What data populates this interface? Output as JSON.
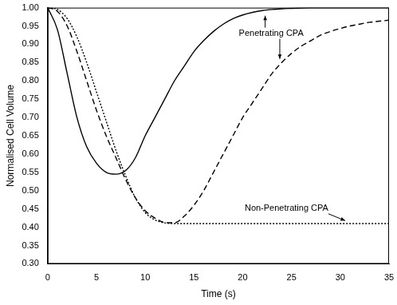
{
  "chart_data": {
    "type": "line",
    "x_label": "Time (s)",
    "y_label": "Normalised Cell Volume",
    "annotations": [
      "Penetrating CPA",
      "Non-Penetrating CPA"
    ],
    "xlim": [
      0,
      35
    ],
    "xticks": [
      0,
      5,
      10,
      15,
      20,
      25,
      30,
      35
    ],
    "ylim": [
      0.3,
      1.0
    ],
    "yticks": [
      {
        "value": 0.3,
        "label": "0.30"
      },
      0.35,
      {
        "value": 0.4,
        "label": "0.40"
      },
      0.45,
      {
        "value": 0.5,
        "label": "0.50"
      },
      0.55,
      {
        "value": 0.6,
        "label": "0.60"
      },
      0.65,
      {
        "value": 0.7,
        "label": "0.70"
      },
      0.75,
      {
        "value": 0.8,
        "label": "0.80"
      },
      0.85,
      {
        "value": 0.9,
        "label": "0.90"
      },
      0.95,
      {
        "value": 1.0,
        "label": "1.00"
      }
    ],
    "grid": false,
    "legend": false,
    "x": [
      0,
      1,
      2,
      3,
      4,
      5,
      6,
      7,
      8,
      9,
      10,
      11,
      12,
      13,
      14,
      15,
      16,
      17,
      18,
      19,
      20,
      21,
      22,
      23,
      24,
      25,
      26,
      27,
      28,
      29,
      30,
      31,
      32,
      33,
      34,
      35
    ],
    "series": [
      {
        "color": "#000000",
        "line_style": "solid",
        "values": [
          1,
          0.94,
          0.82,
          0.7,
          0.62,
          0.575,
          0.55,
          0.545,
          0.555,
          0.59,
          0.65,
          0.7,
          0.75,
          0.8,
          0.84,
          0.88,
          0.91,
          0.935,
          0.955,
          0.97,
          0.98,
          0.987,
          0.992,
          0.995,
          0.997,
          0.998,
          0.999,
          1,
          1,
          1,
          1,
          1,
          1,
          1,
          1,
          1
        ]
      },
      {
        "color": "#000000",
        "line_style": "dashed",
        "values": [
          1,
          0.99,
          0.95,
          0.88,
          0.8,
          0.72,
          0.65,
          0.59,
          0.53,
          0.48,
          0.445,
          0.425,
          0.413,
          0.412,
          0.43,
          0.46,
          0.5,
          0.55,
          0.6,
          0.65,
          0.7,
          0.74,
          0.78,
          0.82,
          0.85,
          0.875,
          0.895,
          0.91,
          0.925,
          0.935,
          0.943,
          0.95,
          0.955,
          0.96,
          0.963,
          0.966
        ]
      },
      {
        "color": "#000000",
        "line_style": "dotted",
        "values": [
          1,
          0.995,
          0.97,
          0.92,
          0.85,
          0.77,
          0.69,
          0.61,
          0.54,
          0.48,
          0.44,
          0.42,
          0.412,
          0.41,
          0.41,
          0.41,
          0.41,
          0.41,
          0.41,
          0.41,
          0.41,
          0.41,
          0.41,
          0.41,
          0.41,
          0.41,
          0.41,
          0.41,
          0.41,
          0.41,
          0.41,
          0.41,
          0.41,
          0.41,
          0.41,
          0.41
        ]
      }
    ]
  }
}
